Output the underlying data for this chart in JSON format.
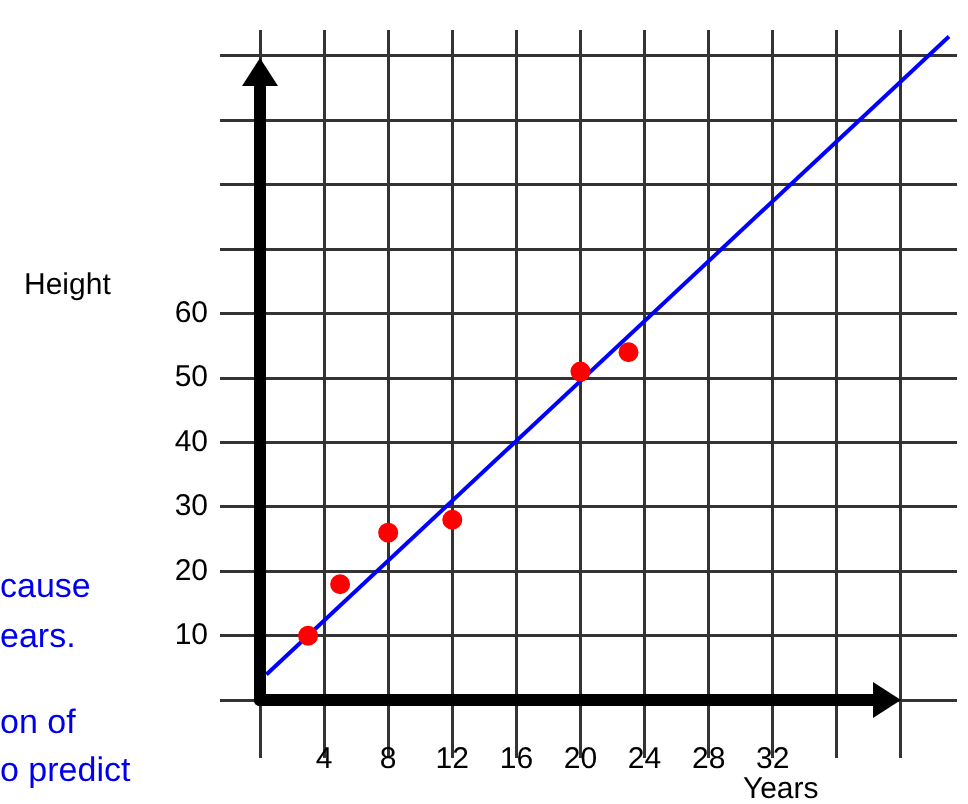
{
  "chart_data": {
    "type": "scatter",
    "xlabel": "Years",
    "ylabel": "Height",
    "xlim": [
      -1,
      43.5
    ],
    "ylim": [
      -4,
      104
    ],
    "xticks": [
      {
        "value": 0,
        "label": null
      },
      4,
      8,
      12,
      16,
      20,
      24,
      28,
      32,
      {
        "value": 36,
        "label": null
      },
      {
        "value": 40,
        "label": null
      }
    ],
    "yticks": [
      {
        "value": 0,
        "label": null
      },
      10,
      20,
      30,
      40,
      50,
      60,
      {
        "value": 70,
        "label": null
      },
      {
        "value": 80,
        "label": null
      },
      {
        "value": 90,
        "label": null
      },
      {
        "value": 100,
        "label": null
      }
    ],
    "grid": true,
    "legend": false,
    "series": [
      {
        "color": "#ff0000",
        "marker": "circle",
        "x": [
          3,
          5,
          8,
          12,
          20,
          23
        ],
        "values": [
          10,
          18,
          26,
          28,
          51,
          54
        ]
      },
      {
        "type": "line",
        "color": "#0000ff",
        "marker": "none",
        "line_style": "solid",
        "x": [
          0.4,
          43
        ],
        "values": [
          4,
          103
        ]
      }
    ],
    "annotations": [
      "cause",
      "ears.",
      "on of",
      "o predict"
    ]
  }
}
